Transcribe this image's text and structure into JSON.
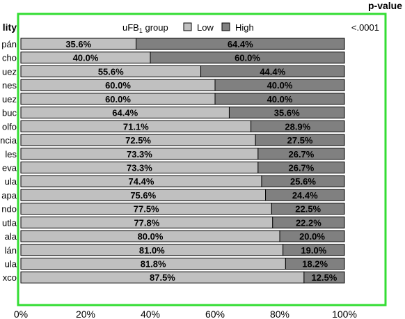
{
  "chart_data": {
    "type": "bar",
    "orientation": "horizontal",
    "stacked": "percent",
    "legend": {
      "title_main": "uFB",
      "title_sub": "1",
      "title_rest": " group",
      "placement": "top"
    },
    "category_axis_title": "lity",
    "pvalue_title": "p-value",
    "pvalue": "<.0001",
    "categories": [
      "pán",
      "cho",
      "uez",
      "nes",
      "uez",
      "buc",
      "olfo",
      "ncia",
      "les",
      "eva",
      "ula",
      "apa",
      "ndo",
      "utla",
      "ala",
      "lán",
      "ula",
      "xco"
    ],
    "series": [
      {
        "name": "Low",
        "color": "#c0c0c0",
        "values": [
          35.6,
          40.0,
          55.6,
          60.0,
          60.0,
          64.4,
          71.1,
          72.5,
          73.3,
          73.3,
          74.4,
          75.6,
          77.5,
          77.8,
          80.0,
          81.0,
          81.8,
          87.5
        ]
      },
      {
        "name": "High",
        "color": "#808080",
        "values": [
          64.4,
          60.0,
          44.4,
          40.0,
          40.0,
          35.6,
          28.9,
          27.5,
          26.7,
          26.7,
          25.6,
          24.4,
          22.5,
          22.2,
          20.0,
          19.0,
          18.2,
          12.5
        ]
      }
    ],
    "xaxis": {
      "ticks": [
        "0%",
        "20%",
        "40%",
        "60%",
        "80%",
        "100%"
      ],
      "range": [
        0,
        100
      ]
    },
    "frame_color": "#33dd33"
  }
}
